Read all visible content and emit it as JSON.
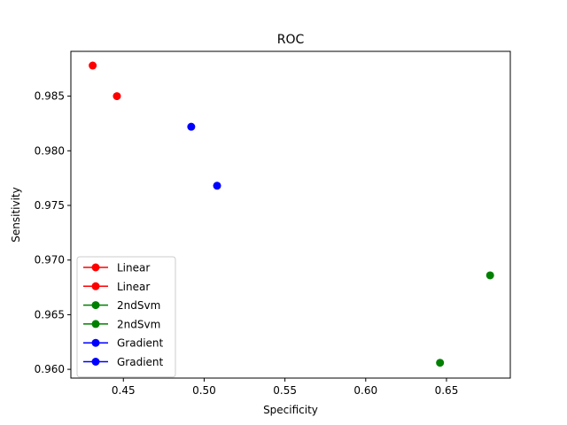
{
  "chart_data": {
    "type": "scatter",
    "title": "ROC",
    "xlabel": "Specificity",
    "ylabel": "Sensitivity",
    "xlim": [
      0.4175,
      0.6895
    ],
    "ylim": [
      0.9592,
      0.9891
    ],
    "x_ticks": [
      0.45,
      0.5,
      0.55,
      0.6,
      0.65
    ],
    "x_tick_labels": [
      "0.45",
      "0.50",
      "0.55",
      "0.60",
      "0.65"
    ],
    "y_ticks": [
      0.96,
      0.965,
      0.97,
      0.975,
      0.98,
      0.985
    ],
    "y_tick_labels": [
      "0.960",
      "0.965",
      "0.970",
      "0.975",
      "0.980",
      "0.985"
    ],
    "grid": false,
    "legend_position": "lower-left",
    "series": [
      {
        "name": "Linear",
        "color": "#ff0000",
        "points": [
          [
            0.431,
            0.9878
          ]
        ]
      },
      {
        "name": "Linear",
        "color": "#ff0000",
        "points": [
          [
            0.446,
            0.985
          ]
        ]
      },
      {
        "name": "2ndSvm",
        "color": "#008000",
        "points": [
          [
            0.677,
            0.9686
          ]
        ]
      },
      {
        "name": "2ndSvm",
        "color": "#008000",
        "points": [
          [
            0.646,
            0.9606
          ]
        ]
      },
      {
        "name": "Gradient",
        "color": "#0000ff",
        "points": [
          [
            0.492,
            0.9822
          ]
        ]
      },
      {
        "name": "Gradient",
        "color": "#0000ff",
        "points": [
          [
            0.508,
            0.9768
          ]
        ]
      }
    ]
  }
}
